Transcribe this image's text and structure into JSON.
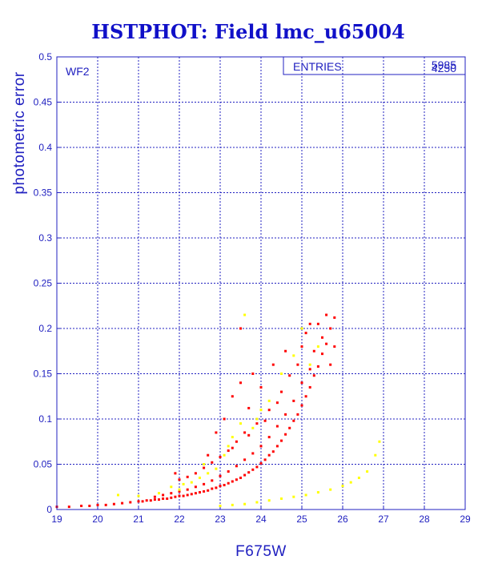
{
  "chart_data": {
    "type": "scatter",
    "title": "HSTPHOT: Field lmc_u65004",
    "xlabel": "F675W",
    "ylabel": "photometric error",
    "xlim": [
      19,
      29
    ],
    "ylim": [
      0,
      0.5
    ],
    "x_ticks": [
      "19",
      "20",
      "21",
      "22",
      "23",
      "24",
      "25",
      "26",
      "27",
      "28",
      "29"
    ],
    "y_ticks": [
      "0",
      "0.05",
      "0.1",
      "0.15",
      "0.2",
      "0.25",
      "0.3",
      "0.35",
      "0.4",
      "0.45",
      "0.5"
    ],
    "grid": true,
    "panel_label": "WF2",
    "stats_box": {
      "label": "ENTRIES",
      "value_primary": "5985",
      "value_secondary": "4250"
    },
    "series": [
      {
        "color": "#ff0000",
        "points": [
          [
            19.0,
            0.003
          ],
          [
            19.3,
            0.003
          ],
          [
            19.6,
            0.004
          ],
          [
            19.8,
            0.004
          ],
          [
            20.0,
            0.005
          ],
          [
            20.2,
            0.005
          ],
          [
            20.4,
            0.006
          ],
          [
            20.6,
            0.007
          ],
          [
            20.8,
            0.008
          ],
          [
            21.0,
            0.009
          ],
          [
            21.2,
            0.01
          ],
          [
            21.4,
            0.011
          ],
          [
            21.6,
            0.012
          ],
          [
            21.8,
            0.013
          ],
          [
            22.0,
            0.015
          ],
          [
            22.2,
            0.016
          ],
          [
            22.4,
            0.018
          ],
          [
            22.6,
            0.02
          ],
          [
            22.8,
            0.023
          ],
          [
            23.0,
            0.026
          ],
          [
            23.2,
            0.029
          ],
          [
            23.4,
            0.033
          ],
          [
            23.6,
            0.038
          ],
          [
            23.8,
            0.044
          ],
          [
            24.0,
            0.051
          ],
          [
            24.2,
            0.06
          ],
          [
            24.4,
            0.07
          ],
          [
            24.6,
            0.083
          ],
          [
            24.8,
            0.098
          ],
          [
            25.0,
            0.115
          ],
          [
            25.2,
            0.135
          ],
          [
            25.4,
            0.158
          ],
          [
            25.6,
            0.183
          ],
          [
            25.8,
            0.212
          ],
          [
            25.7,
            0.2
          ],
          [
            25.5,
            0.172
          ],
          [
            25.3,
            0.148
          ],
          [
            25.1,
            0.125
          ],
          [
            24.9,
            0.105
          ],
          [
            24.7,
            0.09
          ],
          [
            24.5,
            0.076
          ],
          [
            24.3,
            0.064
          ],
          [
            24.1,
            0.055
          ],
          [
            23.9,
            0.047
          ],
          [
            23.7,
            0.041
          ],
          [
            23.5,
            0.035
          ],
          [
            23.3,
            0.031
          ],
          [
            23.1,
            0.027
          ],
          [
            22.9,
            0.024
          ],
          [
            22.7,
            0.021
          ],
          [
            22.5,
            0.019
          ],
          [
            22.3,
            0.017
          ],
          [
            22.1,
            0.015
          ],
          [
            21.9,
            0.014
          ],
          [
            21.7,
            0.012
          ],
          [
            21.5,
            0.011
          ],
          [
            21.3,
            0.01
          ],
          [
            21.1,
            0.009
          ],
          [
            25.6,
            0.215
          ],
          [
            25.8,
            0.18
          ],
          [
            25.7,
            0.16
          ],
          [
            25.4,
            0.205
          ],
          [
            25.5,
            0.19
          ],
          [
            25.3,
            0.175
          ],
          [
            25.2,
            0.155
          ],
          [
            25.0,
            0.14
          ],
          [
            24.8,
            0.12
          ],
          [
            24.6,
            0.105
          ],
          [
            24.4,
            0.092
          ],
          [
            24.2,
            0.08
          ],
          [
            24.0,
            0.07
          ],
          [
            23.8,
            0.062
          ],
          [
            23.6,
            0.055
          ],
          [
            23.4,
            0.048
          ],
          [
            23.2,
            0.042
          ],
          [
            23.0,
            0.037
          ],
          [
            22.8,
            0.032
          ],
          [
            22.6,
            0.028
          ],
          [
            22.4,
            0.025
          ],
          [
            22.2,
            0.022
          ],
          [
            22.0,
            0.02
          ],
          [
            21.8,
            0.018
          ],
          [
            21.6,
            0.016
          ],
          [
            21.4,
            0.014
          ],
          [
            23.5,
            0.14
          ],
          [
            23.3,
            0.125
          ],
          [
            23.7,
            0.112
          ],
          [
            23.8,
            0.15
          ],
          [
            24.0,
            0.135
          ],
          [
            24.3,
            0.16
          ],
          [
            24.6,
            0.175
          ],
          [
            24.2,
            0.11
          ],
          [
            23.9,
            0.095
          ],
          [
            23.6,
            0.085
          ],
          [
            23.4,
            0.075
          ],
          [
            23.2,
            0.065
          ],
          [
            23.0,
            0.058
          ],
          [
            22.8,
            0.052
          ],
          [
            22.6,
            0.046
          ],
          [
            22.4,
            0.04
          ],
          [
            22.2,
            0.036
          ],
          [
            22.0,
            0.033
          ],
          [
            21.9,
            0.04
          ],
          [
            23.1,
            0.1
          ],
          [
            22.9,
            0.085
          ],
          [
            23.5,
            0.2
          ],
          [
            24.5,
            0.13
          ],
          [
            24.9,
            0.16
          ],
          [
            25.0,
            0.18
          ],
          [
            25.1,
            0.195
          ],
          [
            25.2,
            0.205
          ],
          [
            24.7,
            0.148
          ],
          [
            24.4,
            0.118
          ],
          [
            24.1,
            0.098
          ],
          [
            23.7,
            0.082
          ],
          [
            23.3,
            0.068
          ],
          [
            22.7,
            0.06
          ]
        ]
      },
      {
        "color": "#ffff00",
        "points": [
          [
            20.5,
            0.016
          ],
          [
            21.0,
            0.015
          ],
          [
            21.5,
            0.018
          ],
          [
            22.0,
            0.022
          ],
          [
            22.3,
            0.03
          ],
          [
            22.5,
            0.035
          ],
          [
            22.7,
            0.04
          ],
          [
            22.9,
            0.045
          ],
          [
            23.1,
            0.06
          ],
          [
            23.3,
            0.08
          ],
          [
            23.5,
            0.095
          ],
          [
            23.6,
            0.215
          ],
          [
            23.9,
            0.1
          ],
          [
            24.2,
            0.12
          ],
          [
            24.5,
            0.15
          ],
          [
            24.8,
            0.17
          ],
          [
            25.0,
            0.2
          ],
          [
            25.2,
            0.16
          ],
          [
            25.4,
            0.18
          ],
          [
            23.0,
            0.004
          ],
          [
            23.3,
            0.005
          ],
          [
            23.6,
            0.006
          ],
          [
            23.9,
            0.008
          ],
          [
            24.2,
            0.01
          ],
          [
            24.5,
            0.012
          ],
          [
            24.8,
            0.014
          ],
          [
            25.1,
            0.016
          ],
          [
            25.4,
            0.019
          ],
          [
            25.7,
            0.022
          ],
          [
            26.0,
            0.026
          ],
          [
            26.2,
            0.03
          ],
          [
            26.4,
            0.035
          ],
          [
            26.6,
            0.042
          ],
          [
            26.8,
            0.06
          ],
          [
            26.9,
            0.075
          ],
          [
            22.1,
            0.028
          ],
          [
            21.8,
            0.025
          ],
          [
            22.6,
            0.05
          ],
          [
            23.2,
            0.07
          ],
          [
            23.8,
            0.09
          ],
          [
            24.0,
            0.11
          ]
        ]
      }
    ]
  }
}
